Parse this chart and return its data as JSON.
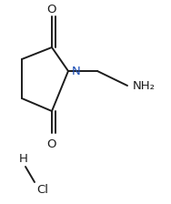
{
  "background_color": "#ffffff",
  "line_color": "#1c1c1c",
  "line_width": 1.4,
  "N_color": "#1a4db5",
  "figsize": [
    1.88,
    2.24
  ],
  "dpi": 100,
  "labels": {
    "O_top": "O",
    "O_bot": "O",
    "N": "N",
    "NH2": "NH₂",
    "H": "H",
    "Cl": "Cl"
  },
  "fontsize": 9.5
}
